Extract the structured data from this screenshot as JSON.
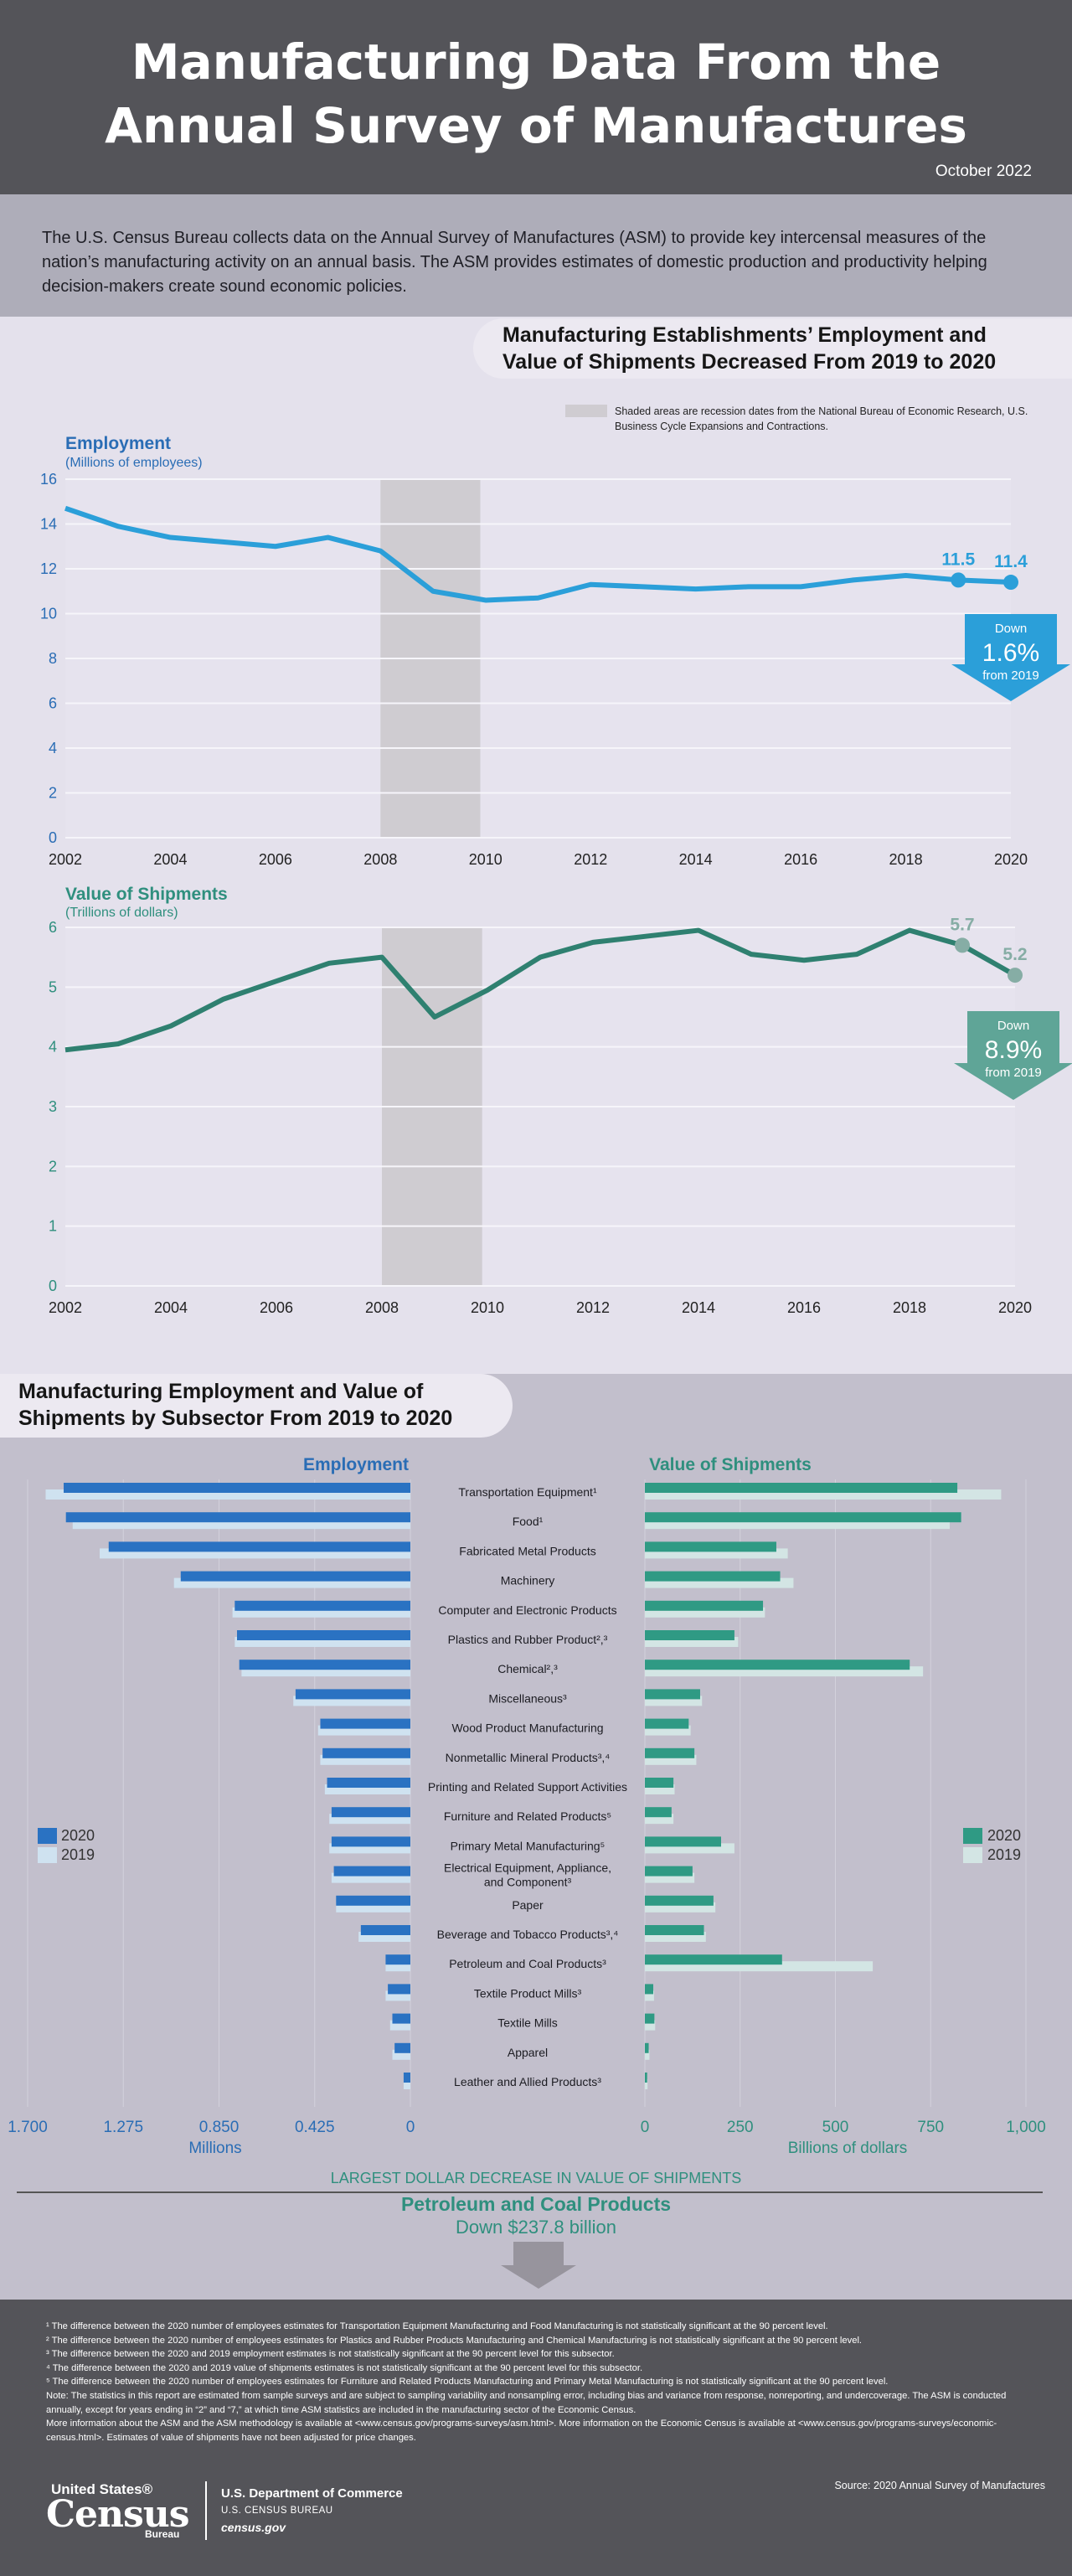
{
  "header": {
    "title": "Manufacturing Data From the\nAnnual Survey of Manufactures",
    "date": "October 2022"
  },
  "intro": "The U.S. Census Bureau collects data on the Annual Survey of Manufactures (ASM) to provide key intercensal measures of the nation’s manufacturing activity on an annual basis. The ASM provides estimates of domestic production and productivity helping decision-makers create sound economic policies.",
  "section1": {
    "title": "Manufacturing Establishments’ Employment and\nValue of Shipments Decreased From 2019 to 2020",
    "recession_note": "Shaded areas are recession dates from the National Bureau of Economic Research, U.S. Business Cycle Expansions and Contractions."
  },
  "section2": {
    "title": "Manufacturing Employment and Value of\nShipments by Subsector From 2019 to 2020"
  },
  "largest": {
    "title": "LARGEST DOLLAR DECREASE IN VALUE OF SHIPMENTS",
    "name": "Petroleum and Coal Products",
    "value": "Down $237.8 billion"
  },
  "colors": {
    "employment": "#2b9fd9",
    "employment_title": "#2a6db5",
    "shipments": "#2f8070",
    "shipments_title": "#2f8f7e",
    "recession": "#cfccd1",
    "bar_emp_2020": "#2a72c2",
    "bar_emp_2019": "#cfe2f0",
    "bar_ship_2020": "#2f9a84",
    "bar_ship_2019": "#d3e5e4"
  },
  "chart_data": [
    {
      "type": "line",
      "title": "Employment",
      "subtitle": "(Millions of employees)",
      "x": [
        2002,
        2003,
        2004,
        2005,
        2006,
        2007,
        2008,
        2009,
        2010,
        2011,
        2012,
        2013,
        2014,
        2015,
        2016,
        2017,
        2018,
        2019,
        2020
      ],
      "values": [
        14.7,
        13.9,
        13.4,
        13.2,
        13.0,
        13.4,
        12.8,
        11.0,
        10.6,
        10.7,
        11.3,
        11.2,
        11.1,
        11.2,
        11.2,
        11.5,
        11.7,
        11.5,
        11.4
      ],
      "ylim": [
        0,
        16
      ],
      "yticks": [
        0,
        2,
        4,
        6,
        8,
        10,
        12,
        14,
        16
      ],
      "xticks": [
        2002,
        2004,
        2006,
        2008,
        2010,
        2012,
        2014,
        2016,
        2018,
        2020
      ],
      "recession_shade": [
        2008,
        2009.9
      ],
      "point_labels": [
        {
          "x": 2019,
          "label": "11.5"
        },
        {
          "x": 2020,
          "label": "11.4"
        }
      ],
      "callout": {
        "top": "Down",
        "value": "1.6%",
        "bottom": "from 2019"
      }
    },
    {
      "type": "line",
      "title": "Value of Shipments",
      "subtitle": "(Trillions of dollars)",
      "x": [
        2002,
        2003,
        2004,
        2005,
        2006,
        2007,
        2008,
        2009,
        2010,
        2011,
        2012,
        2013,
        2014,
        2015,
        2016,
        2017,
        2018,
        2019,
        2020
      ],
      "values": [
        3.95,
        4.05,
        4.35,
        4.8,
        5.1,
        5.4,
        5.5,
        4.5,
        4.95,
        5.5,
        5.75,
        5.85,
        5.95,
        5.55,
        5.45,
        5.55,
        5.95,
        5.7,
        5.2
      ],
      "ylim": [
        0,
        6
      ],
      "yticks": [
        0,
        1,
        2,
        3,
        4,
        5,
        6
      ],
      "xticks": [
        2002,
        2004,
        2006,
        2008,
        2010,
        2012,
        2014,
        2016,
        2018,
        2020
      ],
      "recession_shade": [
        2008,
        2009.9
      ],
      "point_labels": [
        {
          "x": 2019,
          "label": "5.7"
        },
        {
          "x": 2020,
          "label": "5.2"
        }
      ],
      "callout": {
        "top": "Down",
        "value": "8.9%",
        "bottom": "from 2019"
      }
    },
    {
      "type": "bar",
      "orientation": "horizontal",
      "title": "Employment",
      "xlabel": "Millions",
      "xlim": [
        0,
        1.7
      ],
      "xticks": [
        "1.700",
        "1.275",
        "0.850",
        "0.425",
        "0"
      ],
      "categories": [
        "Transportation Equipment¹",
        "Food¹",
        "Fabricated Metal Products",
        "Machinery",
        "Computer and Electronic Products",
        "Plastics and Rubber Product²,³",
        "Chemical²,³",
        "Miscellaneous³",
        "Wood Product Manufacturing",
        "Nonmetallic Mineral Products³,⁴",
        "Printing and Related Support Activities",
        "Furniture and Related Products⁵",
        "Primary Metal Manufacturing⁵",
        "Electrical Equipment, Appliance, and Component³",
        "Paper",
        "Beverage and Tobacco Products³,⁴",
        "Petroleum and Coal Products³",
        "Textile Product Mills³",
        "Textile Mills",
        "Apparel",
        "Leather and Allied Products³"
      ],
      "series": [
        {
          "name": "2020",
          "values": [
            1.54,
            1.53,
            1.34,
            1.02,
            0.78,
            0.77,
            0.76,
            0.51,
            0.4,
            0.39,
            0.37,
            0.35,
            0.35,
            0.34,
            0.33,
            0.22,
            0.11,
            0.1,
            0.08,
            0.07,
            0.03
          ]
        },
        {
          "name": "2019",
          "values": [
            1.62,
            1.5,
            1.38,
            1.05,
            0.79,
            0.78,
            0.75,
            0.52,
            0.41,
            0.4,
            0.38,
            0.36,
            0.36,
            0.35,
            0.33,
            0.23,
            0.11,
            0.11,
            0.09,
            0.08,
            0.03
          ]
        }
      ]
    },
    {
      "type": "bar",
      "orientation": "horizontal",
      "title": "Value of Shipments",
      "xlabel": "Billions of dollars",
      "xlim": [
        0,
        1000
      ],
      "xticks": [
        "0",
        "250",
        "500",
        "750",
        "1,000"
      ],
      "categories": [
        "Transportation Equipment¹",
        "Food¹",
        "Fabricated Metal Products",
        "Machinery",
        "Computer and Electronic Products",
        "Plastics and Rubber Product²,³",
        "Chemical²,³",
        "Miscellaneous³",
        "Wood Product Manufacturing",
        "Nonmetallic Mineral Products³,⁴",
        "Printing and Related Support Activities",
        "Furniture and Related Products⁵",
        "Primary Metal Manufacturing⁵",
        "Electrical Equipment, Appliance, and Component³",
        "Paper",
        "Beverage and Tobacco Products³,⁴",
        "Petroleum and Coal Products³",
        "Textile Product Mills³",
        "Textile Mills",
        "Apparel",
        "Leather and Allied Products³"
      ],
      "series": [
        {
          "name": "2020",
          "values": [
            820,
            830,
            345,
            355,
            310,
            235,
            695,
            145,
            115,
            130,
            75,
            70,
            200,
            125,
            180,
            155,
            360,
            22,
            25,
            10,
            6
          ]
        },
        {
          "name": "2019",
          "values": [
            935,
            800,
            375,
            390,
            315,
            245,
            730,
            150,
            120,
            135,
            78,
            75,
            235,
            130,
            185,
            160,
            598,
            24,
            27,
            12,
            7
          ]
        }
      ]
    }
  ],
  "footnotes": [
    "¹ The difference between the 2020 number of employees estimates for Transportation Equipment Manufacturing and Food Manufacturing is not statistically significant at the 90 percent level.",
    "² The difference between the 2020 number of employees estimates for Plastics and Rubber Products Manufacturing and Chemical Manufacturing is not statistically significant at the 90 percent level.",
    "³ The difference between the 2020 and 2019 employment estimates is not statistically significant at the 90 percent level for this subsector.",
    "⁴ The difference between the 2020 and 2019 value of shipments estimates is not statistically significant at the 90 percent level for this subsector.",
    "⁵ The difference between the 2020 number of employees estimates for Furniture and Related Products Manufacturing and Primary Metal Manufacturing is not statistically significant at the 90 percent level.",
    "Note: The statistics in this report are estimated from sample surveys and are subject to sampling variability and nonsampling error, including bias and variance from response, nonreporting, and undercoverage. The ASM is conducted annually, except for years ending in “2” and “7,” at which time ASM statistics are included in the manufacturing sector of the Economic Census.",
    "More information about the ASM and the ASM methodology is available at <www.census.gov/programs-surveys/asm.html>. More information on the Economic Census is available at <www.census.gov/programs-surveys/economic-census.html>. Estimates of value of shipments have not been adjusted for price changes."
  ],
  "footer": {
    "logo_us": "United States®",
    "logo_census": "Census",
    "logo_bureau": "Bureau",
    "dept": "U.S. Department of Commerce",
    "bureau": "U.S. CENSUS BUREAU",
    "site": "census.gov",
    "source": "Source: 2020 Annual Survey of Manufactures"
  }
}
